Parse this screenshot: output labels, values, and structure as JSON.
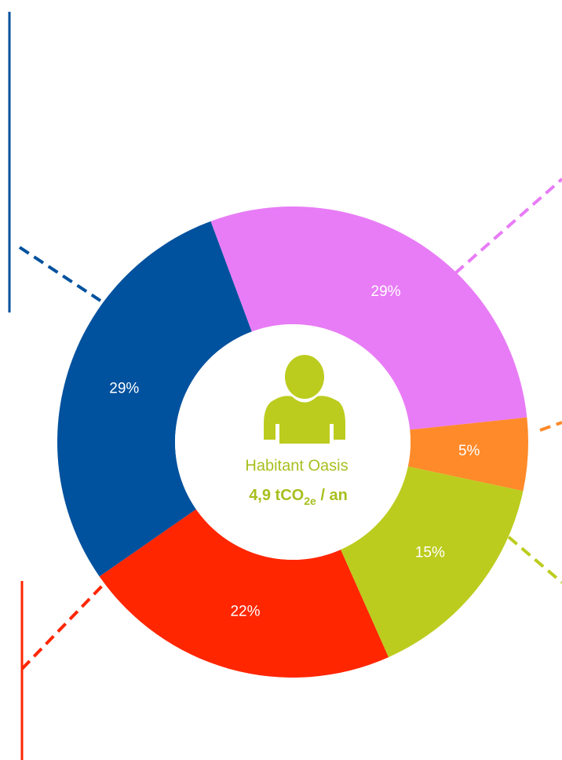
{
  "chart_data": {
    "type": "pie",
    "categories": [
      "pink",
      "orange",
      "green",
      "red",
      "blue"
    ],
    "series": [
      {
        "values": [
          29,
          5,
          15,
          22,
          29
        ],
        "value_labels": [
          "29%",
          "5%",
          "15%",
          "22%",
          "29%"
        ],
        "colors": [
          "#e87cf6",
          "#ff8a2a",
          "#bccc1e",
          "#ff2600",
          "#00519e"
        ]
      }
    ],
    "center_title": "Habitant Oasis",
    "center_value": [
      "4,9 tCO",
      "2e",
      " / an"
    ]
  }
}
